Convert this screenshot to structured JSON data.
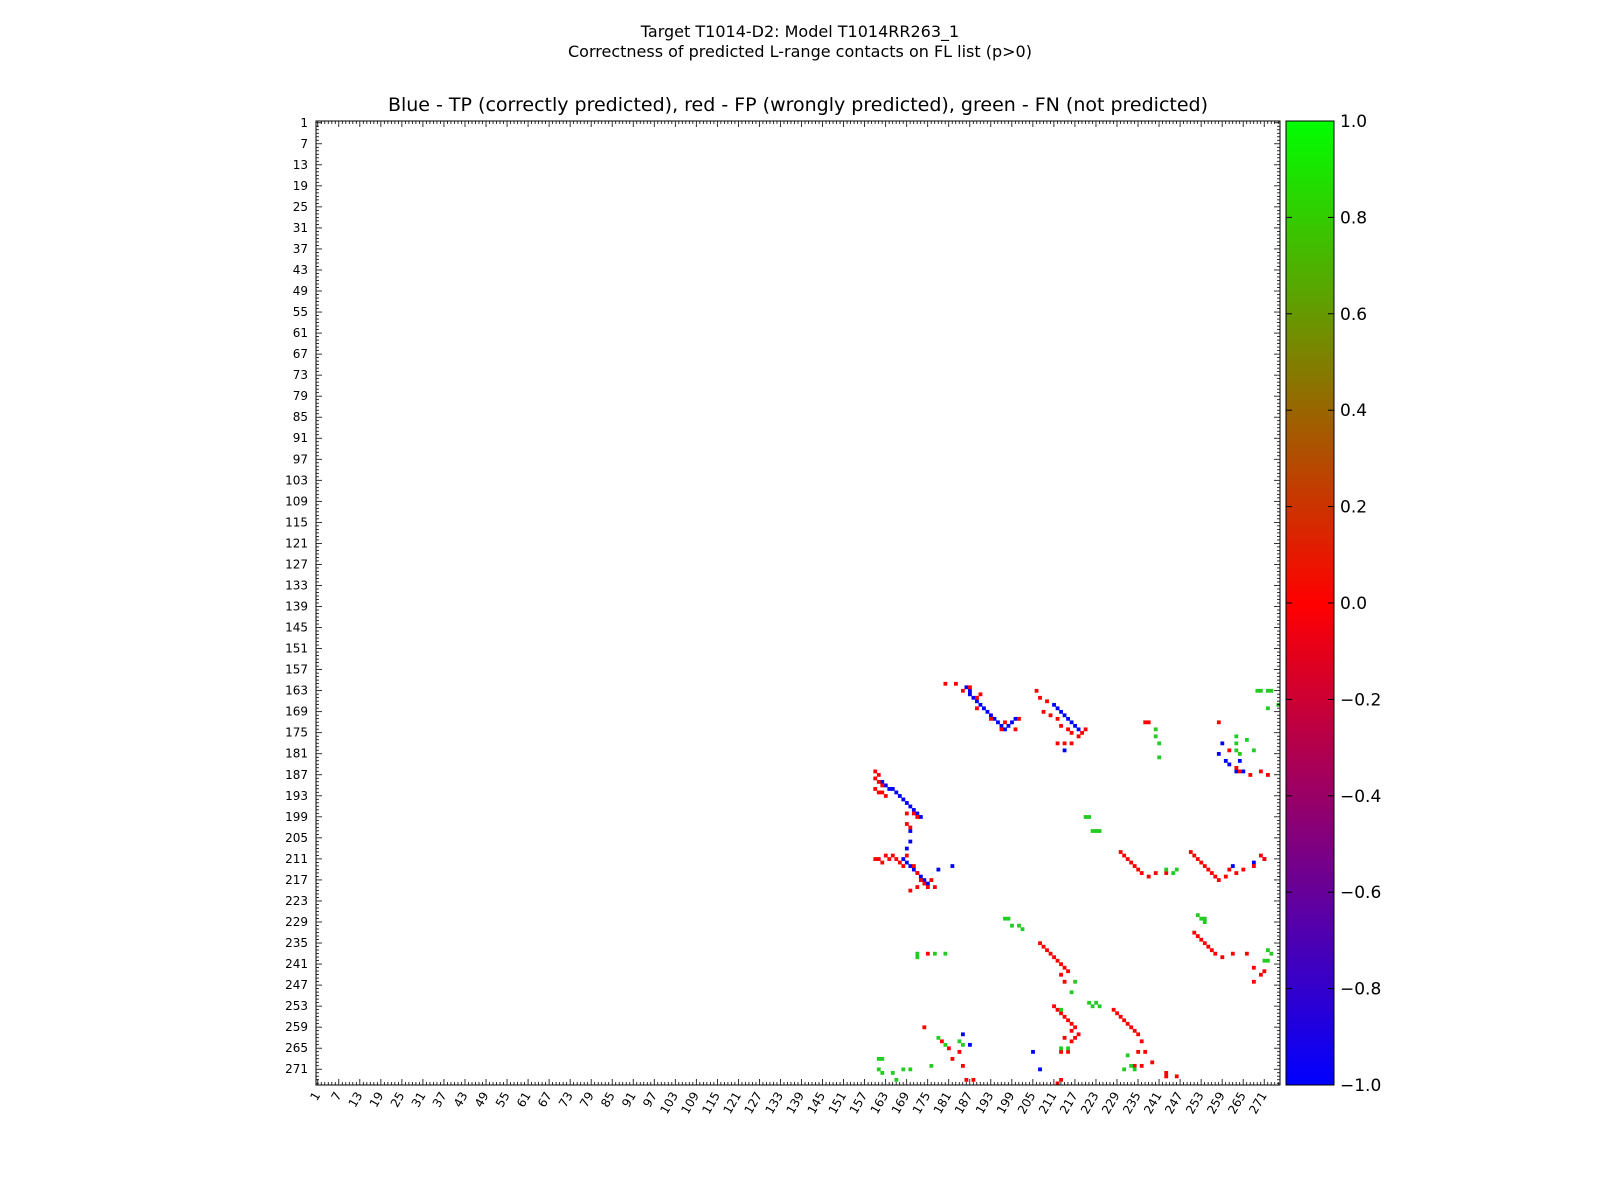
{
  "figure": {
    "suptitle_line1": "Target T1014-D2: Model T1014RR263_1",
    "suptitle_line2": "Correctness of predicted L-range contacts on FL list (p>0)"
  },
  "chart_data": {
    "type": "heatmap",
    "title": "Blue - TP (correctly predicted), red - FP (wrongly predicted), green - FN (not predicted)",
    "xlabel": "",
    "ylabel": "",
    "xlim": [
      1,
      275
    ],
    "ylim": [
      1,
      275
    ],
    "tick_labels": [
      1,
      7,
      13,
      19,
      25,
      31,
      37,
      43,
      49,
      55,
      61,
      67,
      73,
      79,
      85,
      91,
      97,
      103,
      109,
      115,
      121,
      127,
      133,
      139,
      145,
      151,
      157,
      163,
      169,
      175,
      181,
      187,
      193,
      199,
      205,
      211,
      217,
      223,
      229,
      235,
      241,
      247,
      253,
      259,
      265,
      271
    ],
    "colorbar": {
      "ticks": [
        1.0,
        0.8,
        0.6,
        0.4,
        0.2,
        0.0,
        -0.2,
        -0.4,
        -0.6,
        -0.8,
        -1.0
      ],
      "tick_labels": [
        "1.0",
        "0.8",
        "0.6",
        "0.4",
        "0.2",
        "0.0",
        "−0.2",
        "−0.4",
        "−0.6",
        "−0.8",
        "−1.0"
      ],
      "range": [
        -1.0,
        1.0
      ],
      "colors": {
        "low": "#0000ff",
        "mid": "#ff0000",
        "high": "#00ff00"
      }
    },
    "category_values": {
      "TP": -1.0,
      "FP": 0.0,
      "FN": 1.0
    },
    "category_colors": {
      "TP": "#0000ff",
      "FP": "#ff0000",
      "FN": "#22cc22"
    },
    "TP": [
      [
        186,
        162
      ],
      [
        187,
        163
      ],
      [
        187,
        164
      ],
      [
        188,
        165
      ],
      [
        189,
        166
      ],
      [
        190,
        167
      ],
      [
        191,
        168
      ],
      [
        192,
        169
      ],
      [
        193,
        170
      ],
      [
        194,
        171
      ],
      [
        195,
        172
      ],
      [
        196,
        173
      ],
      [
        197,
        174
      ],
      [
        198,
        173
      ],
      [
        199,
        172
      ],
      [
        200,
        171
      ],
      [
        211,
        167
      ],
      [
        212,
        168
      ],
      [
        213,
        169
      ],
      [
        214,
        170
      ],
      [
        215,
        171
      ],
      [
        216,
        172
      ],
      [
        217,
        173
      ],
      [
        218,
        174
      ],
      [
        214,
        180
      ],
      [
        162,
        189
      ],
      [
        163,
        190
      ],
      [
        164,
        191
      ],
      [
        165,
        191
      ],
      [
        166,
        192
      ],
      [
        167,
        193
      ],
      [
        168,
        194
      ],
      [
        169,
        195
      ],
      [
        170,
        196
      ],
      [
        171,
        197
      ],
      [
        172,
        198
      ],
      [
        173,
        199
      ],
      [
        170,
        203
      ],
      [
        170,
        206
      ],
      [
        169,
        208
      ],
      [
        168,
        211
      ],
      [
        169,
        212
      ],
      [
        170,
        213
      ],
      [
        171,
        214
      ],
      [
        172,
        215
      ],
      [
        173,
        216
      ],
      [
        174,
        217
      ],
      [
        175,
        218
      ],
      [
        178,
        214
      ],
      [
        182,
        213
      ],
      [
        259,
        178
      ],
      [
        258,
        181
      ],
      [
        260,
        183
      ],
      [
        261,
        184
      ],
      [
        264,
        183
      ],
      [
        265,
        186
      ],
      [
        263,
        186
      ],
      [
        262,
        213
      ],
      [
        268,
        212
      ],
      [
        271,
        211
      ],
      [
        185,
        261
      ],
      [
        187,
        264
      ],
      [
        207,
        271
      ],
      [
        205,
        266
      ]
    ],
    "FP": [
      [
        180,
        161
      ],
      [
        183,
        161
      ],
      [
        185,
        163
      ],
      [
        187,
        162
      ],
      [
        189,
        165
      ],
      [
        190,
        164
      ],
      [
        189,
        168
      ],
      [
        193,
        171
      ],
      [
        197,
        172
      ],
      [
        196,
        174
      ],
      [
        201,
        171
      ],
      [
        200,
        174
      ],
      [
        206,
        163
      ],
      [
        207,
        165
      ],
      [
        209,
        166
      ],
      [
        208,
        169
      ],
      [
        210,
        170
      ],
      [
        212,
        171
      ],
      [
        213,
        173
      ],
      [
        215,
        174
      ],
      [
        216,
        175
      ],
      [
        218,
        176
      ],
      [
        219,
        175
      ],
      [
        220,
        174
      ],
      [
        214,
        178
      ],
      [
        212,
        178
      ],
      [
        216,
        178
      ],
      [
        237,
        172
      ],
      [
        238,
        172
      ],
      [
        258,
        172
      ],
      [
        261,
        180
      ],
      [
        263,
        185
      ],
      [
        264,
        186
      ],
      [
        267,
        187
      ],
      [
        270,
        186
      ],
      [
        272,
        187
      ],
      [
        160,
        186
      ],
      [
        161,
        187
      ],
      [
        160,
        188
      ],
      [
        161,
        189
      ],
      [
        162,
        190
      ],
      [
        160,
        191
      ],
      [
        161,
        192
      ],
      [
        163,
        193
      ],
      [
        162,
        192
      ],
      [
        169,
        198
      ],
      [
        171,
        198
      ],
      [
        172,
        199
      ],
      [
        169,
        201
      ],
      [
        170,
        202
      ],
      [
        160,
        211
      ],
      [
        161,
        211
      ],
      [
        162,
        212
      ],
      [
        163,
        210
      ],
      [
        164,
        211
      ],
      [
        165,
        210
      ],
      [
        166,
        211
      ],
      [
        167,
        212
      ],
      [
        168,
        213
      ],
      [
        169,
        210
      ],
      [
        171,
        213
      ],
      [
        172,
        215
      ],
      [
        173,
        217
      ],
      [
        174,
        218
      ],
      [
        175,
        219
      ],
      [
        176,
        217
      ],
      [
        177,
        219
      ],
      [
        172,
        219
      ],
      [
        170,
        220
      ],
      [
        230,
        209
      ],
      [
        231,
        210
      ],
      [
        232,
        211
      ],
      [
        233,
        212
      ],
      [
        234,
        213
      ],
      [
        235,
        214
      ],
      [
        236,
        215
      ],
      [
        238,
        216
      ],
      [
        240,
        215
      ],
      [
        243,
        215
      ],
      [
        250,
        209
      ],
      [
        251,
        210
      ],
      [
        252,
        211
      ],
      [
        253,
        212
      ],
      [
        254,
        213
      ],
      [
        255,
        214
      ],
      [
        256,
        215
      ],
      [
        257,
        216
      ],
      [
        258,
        217
      ],
      [
        260,
        216
      ],
      [
        261,
        214
      ],
      [
        263,
        215
      ],
      [
        265,
        214
      ],
      [
        268,
        213
      ],
      [
        271,
        211
      ],
      [
        270,
        210
      ],
      [
        251,
        232
      ],
      [
        252,
        233
      ],
      [
        253,
        234
      ],
      [
        254,
        235
      ],
      [
        255,
        236
      ],
      [
        256,
        237
      ],
      [
        257,
        238
      ],
      [
        259,
        239
      ],
      [
        262,
        238
      ],
      [
        266,
        238
      ],
      [
        268,
        242
      ],
      [
        270,
        244
      ],
      [
        271,
        243
      ],
      [
        268,
        246
      ],
      [
        175,
        238
      ],
      [
        207,
        235
      ],
      [
        208,
        236
      ],
      [
        209,
        237
      ],
      [
        210,
        238
      ],
      [
        211,
        239
      ],
      [
        212,
        240
      ],
      [
        213,
        241
      ],
      [
        214,
        242
      ],
      [
        215,
        243
      ],
      [
        213,
        244
      ],
      [
        214,
        246
      ],
      [
        211,
        253
      ],
      [
        212,
        254
      ],
      [
        213,
        255
      ],
      [
        214,
        256
      ],
      [
        215,
        257
      ],
      [
        216,
        258
      ],
      [
        217,
        259
      ],
      [
        216,
        260
      ],
      [
        218,
        261
      ],
      [
        217,
        262
      ],
      [
        216,
        263
      ],
      [
        214,
        262
      ],
      [
        213,
        266
      ],
      [
        215,
        266
      ],
      [
        228,
        254
      ],
      [
        229,
        255
      ],
      [
        230,
        256
      ],
      [
        231,
        257
      ],
      [
        232,
        258
      ],
      [
        233,
        259
      ],
      [
        234,
        260
      ],
      [
        235,
        261
      ],
      [
        236,
        263
      ],
      [
        235,
        266
      ],
      [
        237,
        266
      ],
      [
        236,
        270
      ],
      [
        234,
        270
      ],
      [
        174,
        259
      ],
      [
        179,
        263
      ],
      [
        181,
        265
      ],
      [
        184,
        266
      ],
      [
        182,
        268
      ],
      [
        185,
        270
      ],
      [
        186,
        274
      ],
      [
        188,
        274
      ],
      [
        239,
        269
      ],
      [
        243,
        272
      ],
      [
        243,
        273
      ],
      [
        246,
        273
      ],
      [
        212,
        275
      ],
      [
        213,
        274
      ]
    ],
    "FN": [
      [
        240,
        174
      ],
      [
        176,
        270
      ],
      [
        178,
        262
      ],
      [
        180,
        264
      ],
      [
        184,
        263
      ],
      [
        185,
        264
      ],
      [
        172,
        239
      ],
      [
        172,
        238
      ],
      [
        177,
        238
      ],
      [
        180,
        238
      ],
      [
        269,
        163
      ],
      [
        270,
        163
      ],
      [
        272,
        163
      ],
      [
        273,
        163
      ],
      [
        275,
        167
      ],
      [
        272,
        168
      ],
      [
        263,
        176
      ],
      [
        263,
        178
      ],
      [
        266,
        177
      ],
      [
        263,
        180
      ],
      [
        264,
        181
      ],
      [
        268,
        180
      ],
      [
        240,
        176
      ],
      [
        241,
        178
      ],
      [
        241,
        182
      ],
      [
        220,
        199
      ],
      [
        221,
        199
      ],
      [
        222,
        203
      ],
      [
        223,
        203
      ],
      [
        224,
        203
      ],
      [
        243,
        214
      ],
      [
        246,
        214
      ],
      [
        245,
        215
      ],
      [
        197,
        228
      ],
      [
        198,
        228
      ],
      [
        199,
        230
      ],
      [
        201,
        230
      ],
      [
        202,
        231
      ],
      [
        252,
        227
      ],
      [
        253,
        228
      ],
      [
        254,
        228
      ],
      [
        254,
        229
      ],
      [
        272,
        237
      ],
      [
        273,
        238
      ],
      [
        272,
        240
      ],
      [
        271,
        240
      ],
      [
        221,
        252
      ],
      [
        222,
        253
      ],
      [
        223,
        252
      ],
      [
        224,
        253
      ],
      [
        213,
        254
      ],
      [
        216,
        249
      ],
      [
        217,
        246
      ],
      [
        232,
        267
      ],
      [
        233,
        270
      ],
      [
        231,
        271
      ],
      [
        234,
        271
      ],
      [
        161,
        268
      ],
      [
        162,
        268
      ],
      [
        161,
        271
      ],
      [
        162,
        272
      ],
      [
        165,
        272
      ],
      [
        166,
        274
      ],
      [
        168,
        271
      ],
      [
        170,
        271
      ],
      [
        213,
        265
      ],
      [
        215,
        265
      ]
    ]
  }
}
